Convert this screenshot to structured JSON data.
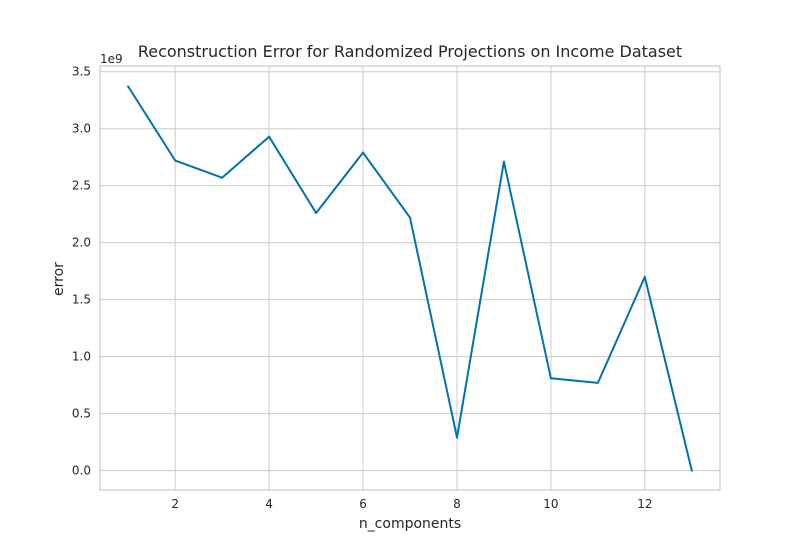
{
  "chart_data": {
    "type": "line",
    "title": "Reconstruction Error for Randomized Projections on Income Dataset",
    "xlabel": "n_components",
    "ylabel": "error",
    "offset_text": "1e9",
    "xlim": [
      0.4,
      13.6
    ],
    "ylim": [
      -0.17,
      3.55
    ],
    "x_ticks": [
      2,
      4,
      6,
      8,
      10,
      12
    ],
    "x_tick_labels": [
      "2",
      "4",
      "6",
      "8",
      "10",
      "12"
    ],
    "y_ticks": [
      0.0,
      0.5,
      1.0,
      1.5,
      2.0,
      2.5,
      3.0,
      3.5
    ],
    "y_tick_labels": [
      "0.0",
      "0.5",
      "1.0",
      "1.5",
      "2.0",
      "2.5",
      "3.0",
      "3.5"
    ],
    "grid": true,
    "line_color": "#0072B2",
    "grid_color": "#cccccc",
    "x": [
      1,
      2,
      3,
      4,
      5,
      6,
      7,
      8,
      9,
      10,
      11,
      12,
      13
    ],
    "y": [
      3.37,
      2.72,
      2.57,
      2.93,
      2.26,
      2.79,
      2.22,
      0.29,
      2.71,
      0.81,
      0.77,
      1.7,
      0.0
    ]
  }
}
